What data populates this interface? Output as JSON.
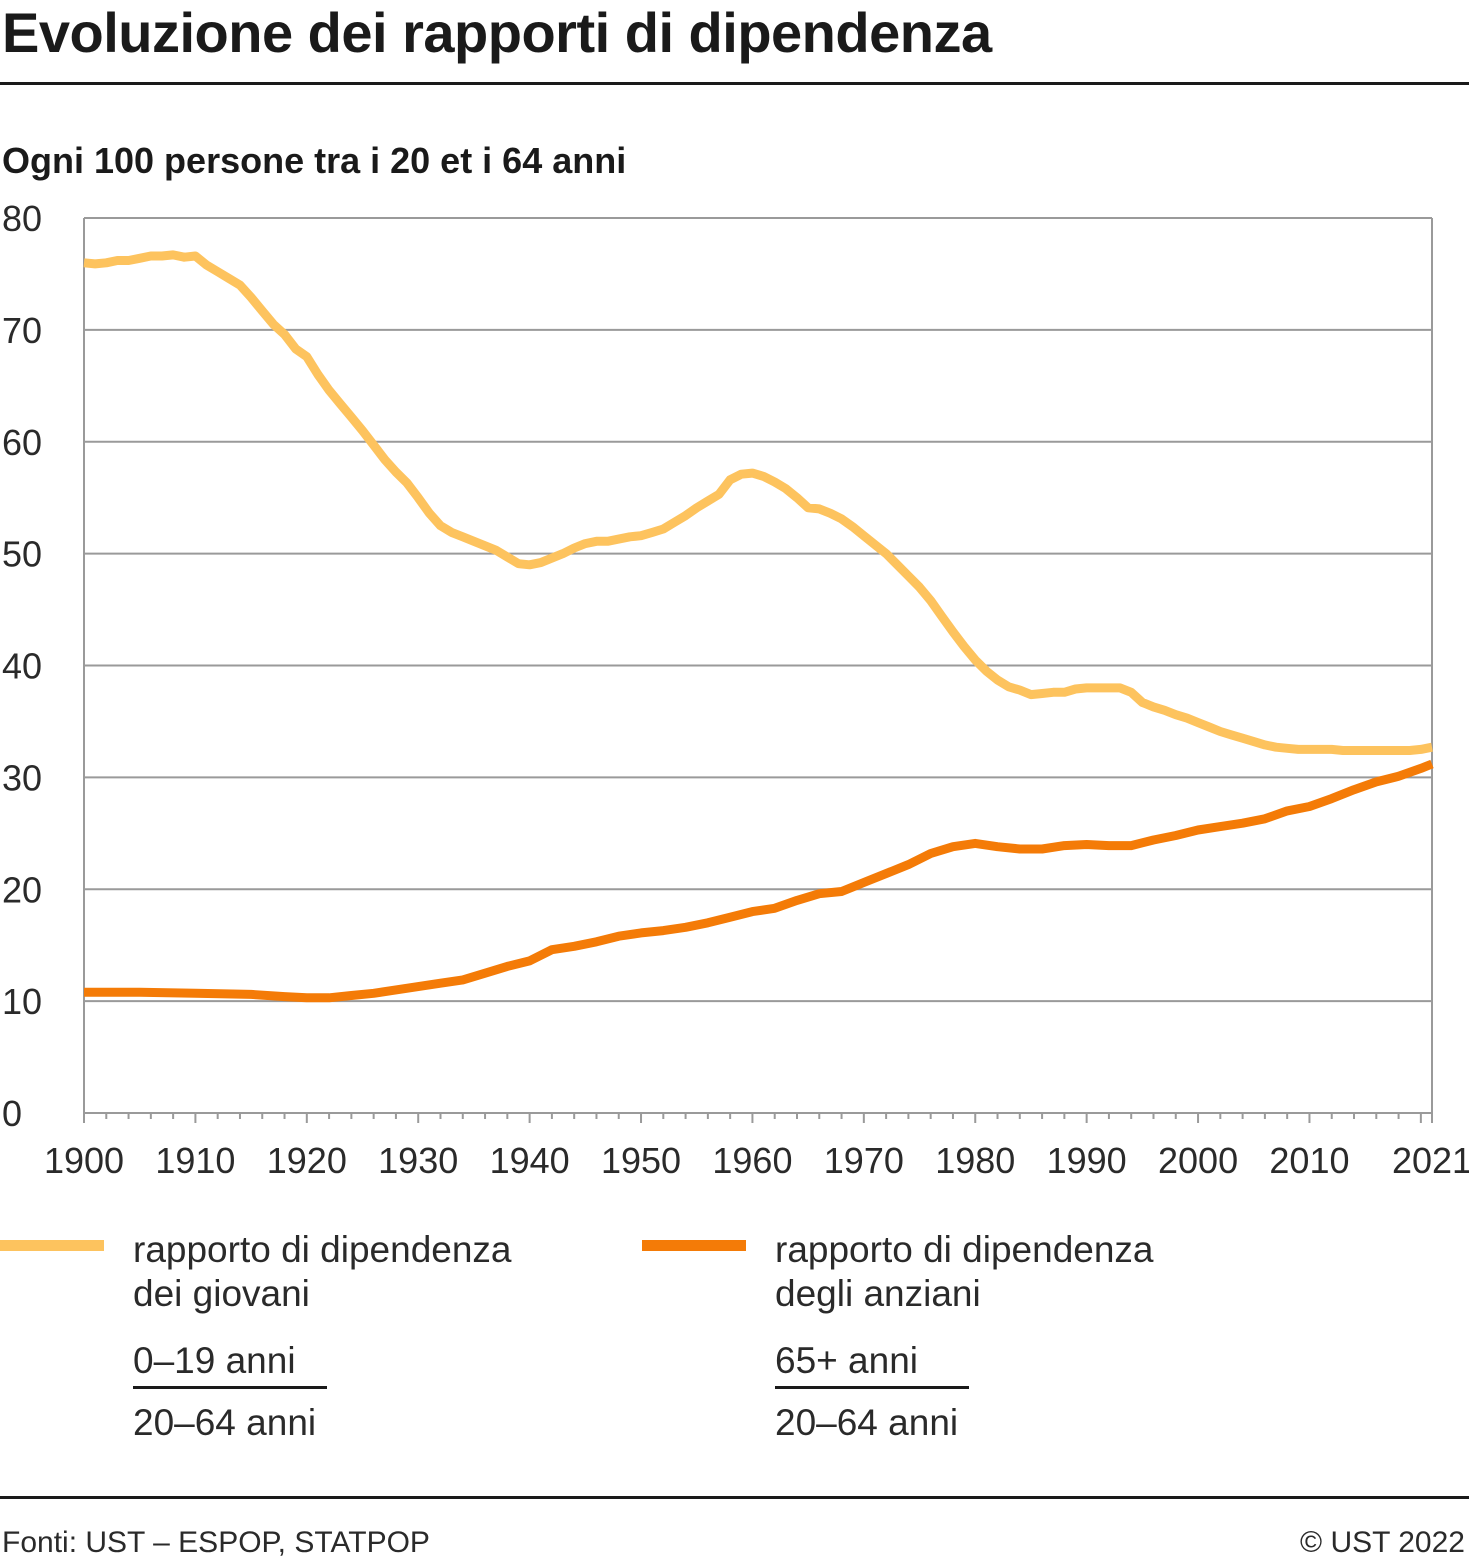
{
  "title": "Evoluzione dei rapporti di dipendenza",
  "subtitle": "Ogni 100 persone tra i 20 et i 64 anni",
  "legend": {
    "young": {
      "line1": "rapporto di dipendenza",
      "line2": "dei giovani",
      "numerator": "0–19 anni",
      "denominator": "20–64 anni",
      "color": "#fdc35e"
    },
    "old": {
      "line1": "rapporto di dipendenza",
      "line2": "degli anziani",
      "numerator": "65+ anni",
      "denominator": "20–64 anni",
      "color": "#f47b07"
    }
  },
  "footer": {
    "source": "Fonti: UST – ESPOP, STATPOP",
    "copyright": "© UST 2022"
  },
  "chart_data": {
    "type": "line",
    "title": "Evoluzione dei rapporti di dipendenza",
    "ylabel": "Ogni 100 persone tra i 20 et i 64 anni",
    "xlabel": "",
    "xlim": [
      1900,
      2021
    ],
    "ylim": [
      0,
      80
    ],
    "grid": true,
    "legend_position": "bottom",
    "x_ticks": [
      1900,
      1910,
      1920,
      1930,
      1940,
      1950,
      1960,
      1970,
      1980,
      1990,
      2000,
      2010,
      2021
    ],
    "y_ticks": [
      0,
      10,
      20,
      30,
      40,
      50,
      60,
      70,
      80
    ],
    "series": [
      {
        "name": "rapporto di dipendenza dei giovani",
        "color": "#fdc35e",
        "points": [
          [
            1900,
            76.0
          ],
          [
            1901,
            75.9
          ],
          [
            1902,
            76.0
          ],
          [
            1903,
            76.2
          ],
          [
            1904,
            76.2
          ],
          [
            1905,
            76.4
          ],
          [
            1906,
            76.6
          ],
          [
            1907,
            76.6
          ],
          [
            1908,
            76.7
          ],
          [
            1909,
            76.5
          ],
          [
            1910,
            76.6
          ],
          [
            1911,
            75.8
          ],
          [
            1912,
            75.2
          ],
          [
            1913,
            74.6
          ],
          [
            1914,
            74.0
          ],
          [
            1915,
            72.9
          ],
          [
            1916,
            71.7
          ],
          [
            1917,
            70.5
          ],
          [
            1918,
            69.6
          ],
          [
            1919,
            68.3
          ],
          [
            1920,
            67.6
          ],
          [
            1921,
            66.0
          ],
          [
            1922,
            64.6
          ],
          [
            1923,
            63.4
          ],
          [
            1924,
            62.2
          ],
          [
            1925,
            61.0
          ],
          [
            1926,
            59.7
          ],
          [
            1927,
            58.4
          ],
          [
            1928,
            57.3
          ],
          [
            1929,
            56.3
          ],
          [
            1930,
            55.0
          ],
          [
            1931,
            53.6
          ],
          [
            1932,
            52.5
          ],
          [
            1933,
            51.9
          ],
          [
            1934,
            51.5
          ],
          [
            1935,
            51.1
          ],
          [
            1936,
            50.7
          ],
          [
            1937,
            50.3
          ],
          [
            1938,
            49.7
          ],
          [
            1939,
            49.1
          ],
          [
            1940,
            49.0
          ],
          [
            1941,
            49.2
          ],
          [
            1942,
            49.6
          ],
          [
            1943,
            50.0
          ],
          [
            1944,
            50.5
          ],
          [
            1945,
            50.9
          ],
          [
            1946,
            51.1
          ],
          [
            1947,
            51.1
          ],
          [
            1948,
            51.3
          ],
          [
            1949,
            51.5
          ],
          [
            1950,
            51.6
          ],
          [
            1951,
            51.9
          ],
          [
            1952,
            52.2
          ],
          [
            1953,
            52.8
          ],
          [
            1954,
            53.4
          ],
          [
            1955,
            54.1
          ],
          [
            1956,
            54.7
          ],
          [
            1957,
            55.3
          ],
          [
            1958,
            56.6
          ],
          [
            1959,
            57.1
          ],
          [
            1960,
            57.2
          ],
          [
            1961,
            56.9
          ],
          [
            1962,
            56.4
          ],
          [
            1963,
            55.8
          ],
          [
            1964,
            55.0
          ],
          [
            1965,
            54.1
          ],
          [
            1966,
            54.0
          ],
          [
            1967,
            53.6
          ],
          [
            1968,
            53.1
          ],
          [
            1969,
            52.4
          ],
          [
            1970,
            51.6
          ],
          [
            1971,
            50.8
          ],
          [
            1972,
            50.0
          ],
          [
            1973,
            49.0
          ],
          [
            1974,
            48.0
          ],
          [
            1975,
            47.0
          ],
          [
            1976,
            45.8
          ],
          [
            1977,
            44.4
          ],
          [
            1978,
            43.0
          ],
          [
            1979,
            41.7
          ],
          [
            1980,
            40.5
          ],
          [
            1981,
            39.5
          ],
          [
            1982,
            38.7
          ],
          [
            1983,
            38.1
          ],
          [
            1984,
            37.8
          ],
          [
            1985,
            37.4
          ],
          [
            1986,
            37.5
          ],
          [
            1987,
            37.6
          ],
          [
            1988,
            37.6
          ],
          [
            1989,
            37.9
          ],
          [
            1990,
            38.0
          ],
          [
            1991,
            38.0
          ],
          [
            1992,
            38.0
          ],
          [
            1993,
            38.0
          ],
          [
            1994,
            37.6
          ],
          [
            1995,
            36.7
          ],
          [
            1996,
            36.3
          ],
          [
            1997,
            36.0
          ],
          [
            1998,
            35.6
          ],
          [
            1999,
            35.3
          ],
          [
            2000,
            34.9
          ],
          [
            2001,
            34.5
          ],
          [
            2002,
            34.1
          ],
          [
            2003,
            33.8
          ],
          [
            2004,
            33.5
          ],
          [
            2005,
            33.2
          ],
          [
            2006,
            32.9
          ],
          [
            2007,
            32.7
          ],
          [
            2008,
            32.6
          ],
          [
            2009,
            32.5
          ],
          [
            2010,
            32.5
          ],
          [
            2011,
            32.5
          ],
          [
            2012,
            32.5
          ],
          [
            2013,
            32.4
          ],
          [
            2014,
            32.4
          ],
          [
            2015,
            32.4
          ],
          [
            2016,
            32.4
          ],
          [
            2017,
            32.4
          ],
          [
            2018,
            32.4
          ],
          [
            2019,
            32.4
          ],
          [
            2020,
            32.5
          ],
          [
            2021,
            32.7
          ]
        ]
      },
      {
        "name": "rapporto di dipendenza degli anziani",
        "color": "#f47b07",
        "points": [
          [
            1900,
            10.8
          ],
          [
            1905,
            10.8
          ],
          [
            1910,
            10.7
          ],
          [
            1915,
            10.6
          ],
          [
            1918,
            10.4
          ],
          [
            1920,
            10.3
          ],
          [
            1922,
            10.3
          ],
          [
            1924,
            10.5
          ],
          [
            1926,
            10.7
          ],
          [
            1928,
            11.0
          ],
          [
            1930,
            11.3
          ],
          [
            1932,
            11.6
          ],
          [
            1934,
            11.9
          ],
          [
            1936,
            12.5
          ],
          [
            1938,
            13.1
          ],
          [
            1940,
            13.6
          ],
          [
            1942,
            14.6
          ],
          [
            1944,
            14.9
          ],
          [
            1946,
            15.3
          ],
          [
            1948,
            15.8
          ],
          [
            1950,
            16.1
          ],
          [
            1952,
            16.3
          ],
          [
            1954,
            16.6
          ],
          [
            1956,
            17.0
          ],
          [
            1958,
            17.5
          ],
          [
            1960,
            18.0
          ],
          [
            1962,
            18.3
          ],
          [
            1964,
            19.0
          ],
          [
            1966,
            19.6
          ],
          [
            1968,
            19.8
          ],
          [
            1970,
            20.6
          ],
          [
            1972,
            21.4
          ],
          [
            1974,
            22.2
          ],
          [
            1976,
            23.2
          ],
          [
            1978,
            23.8
          ],
          [
            1980,
            24.1
          ],
          [
            1982,
            23.8
          ],
          [
            1984,
            23.6
          ],
          [
            1986,
            23.6
          ],
          [
            1988,
            23.9
          ],
          [
            1990,
            24.0
          ],
          [
            1992,
            23.9
          ],
          [
            1994,
            23.9
          ],
          [
            1996,
            24.4
          ],
          [
            1998,
            24.8
          ],
          [
            2000,
            25.3
          ],
          [
            2002,
            25.6
          ],
          [
            2004,
            25.9
          ],
          [
            2006,
            26.3
          ],
          [
            2008,
            27.0
          ],
          [
            2010,
            27.4
          ],
          [
            2012,
            28.1
          ],
          [
            2014,
            28.9
          ],
          [
            2016,
            29.6
          ],
          [
            2018,
            30.1
          ],
          [
            2020,
            30.8
          ],
          [
            2021,
            31.2
          ]
        ]
      }
    ]
  }
}
